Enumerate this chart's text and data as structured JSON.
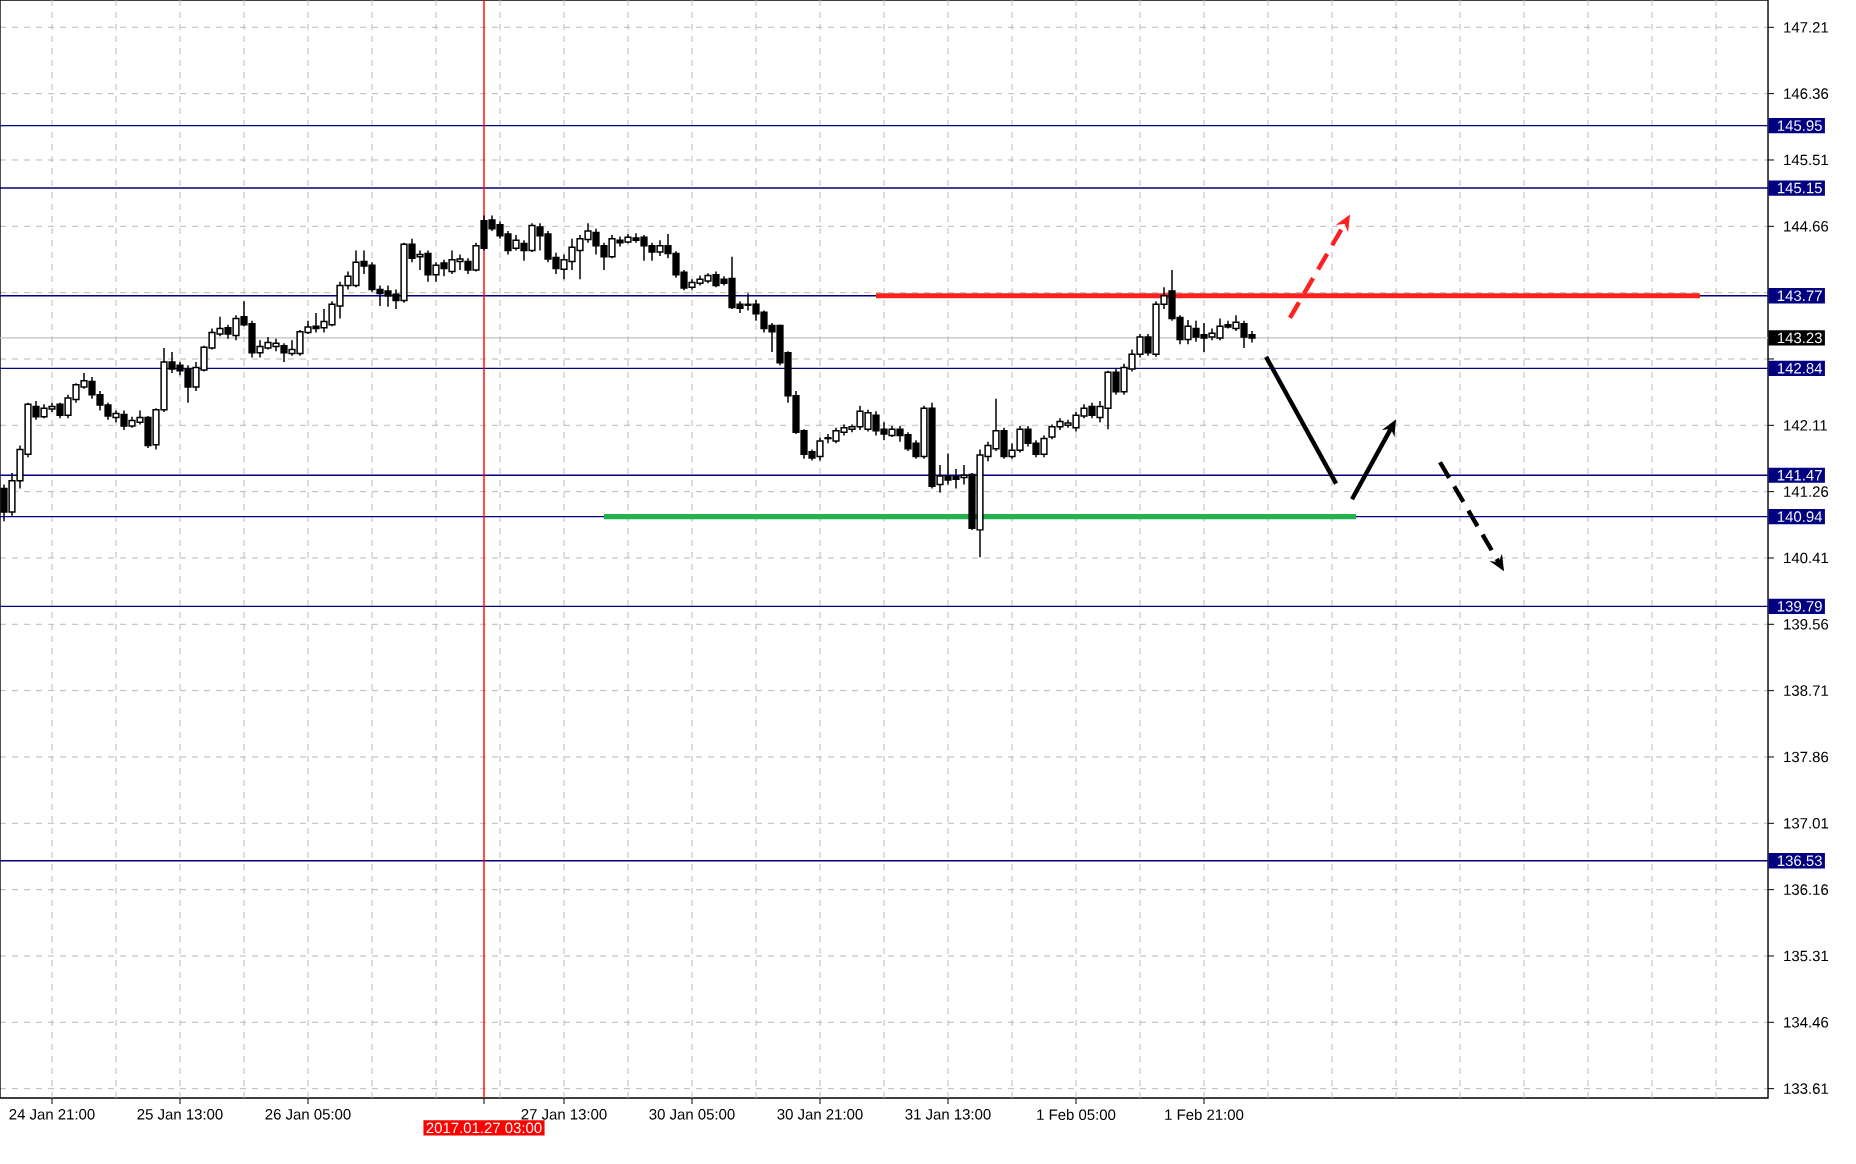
{
  "chart_data": {
    "type": "candlestick",
    "color": "#000000",
    "grid": true,
    "categories": [
      null,
      null,
      null,
      null,
      null,
      null,
      "24 Jan 21:00",
      null,
      null,
      null,
      null,
      null,
      null,
      null,
      null,
      null,
      null,
      null,
      null,
      null,
      null,
      null,
      "25 Jan 13:00",
      null,
      null,
      null,
      null,
      null,
      null,
      null,
      null,
      null,
      null,
      null,
      null,
      null,
      null,
      null,
      "26 Jan 05:00",
      null,
      null,
      null,
      null,
      null,
      null,
      null,
      null,
      null,
      null,
      null,
      null,
      null,
      null,
      null,
      null,
      null,
      null,
      null,
      null,
      null,
      "2017.01.27 03:00",
      null,
      null,
      null,
      null,
      null,
      null,
      null,
      null,
      null,
      "27 Jan 13:00",
      null,
      null,
      null,
      null,
      null,
      null,
      null,
      null,
      null,
      null,
      null,
      null,
      null,
      null,
      null,
      "30 Jan 05:00",
      null,
      null,
      null,
      null,
      null,
      null,
      null,
      null,
      null,
      null,
      null,
      null,
      null,
      null,
      null,
      "30 Jan 21:00",
      null,
      null,
      null,
      null,
      null,
      null,
      null,
      null,
      null,
      null,
      null,
      null,
      null,
      null,
      null,
      "31 Jan 13:00",
      null,
      null,
      null,
      null,
      null,
      null,
      null,
      null,
      null,
      null,
      null,
      null,
      null,
      null,
      null,
      "1 Feb 05:00",
      null,
      null,
      null,
      null,
      null,
      null,
      null,
      null,
      null,
      null,
      null,
      null,
      null,
      null,
      null,
      "1 Feb 21:00",
      null,
      null,
      null,
      null,
      null,
      null,
      null,
      null,
      null,
      null,
      null,
      null,
      null,
      null,
      null,
      null,
      null,
      null,
      null,
      null,
      null,
      null,
      null,
      null,
      null,
      null,
      null,
      null,
      null,
      null,
      null,
      null,
      null,
      null,
      null,
      null,
      null,
      null,
      null,
      null,
      null,
      null,
      null,
      null,
      null,
      null,
      null,
      null,
      null,
      null,
      null,
      null,
      null,
      null,
      null,
      null,
      null,
      null,
      null,
      null,
      null,
      null,
      null,
      null,
      null,
      null,
      null,
      null,
      null,
      null
    ],
    "ohlc": [
      [
        141.3,
        141.35,
        140.88,
        141.0
      ],
      [
        141.0,
        141.5,
        140.95,
        141.4
      ],
      [
        141.4,
        141.85,
        141.3,
        141.8
      ],
      [
        141.74,
        142.4,
        141.7,
        142.38
      ],
      [
        142.35,
        142.42,
        142.18,
        142.22
      ],
      [
        142.22,
        142.38,
        142.2,
        142.33
      ],
      [
        142.32,
        142.4,
        142.28,
        142.35
      ],
      [
        142.38,
        142.4,
        142.2,
        142.24
      ],
      [
        142.24,
        142.5,
        142.2,
        142.46
      ],
      [
        142.44,
        142.65,
        142.4,
        142.63
      ],
      [
        142.6,
        142.78,
        142.58,
        142.68
      ],
      [
        142.67,
        142.73,
        142.45,
        142.5
      ],
      [
        142.5,
        142.55,
        142.3,
        142.37
      ],
      [
        142.37,
        142.4,
        142.18,
        142.23
      ],
      [
        142.21,
        142.3,
        142.15,
        142.26
      ],
      [
        142.25,
        142.3,
        142.05,
        142.1
      ],
      [
        142.1,
        142.22,
        142.08,
        142.17
      ],
      [
        142.15,
        142.3,
        142.12,
        142.21
      ],
      [
        142.21,
        142.23,
        141.82,
        141.85
      ],
      [
        141.86,
        142.33,
        141.8,
        142.31
      ],
      [
        142.31,
        143.1,
        142.28,
        142.92
      ],
      [
        142.92,
        143.05,
        142.78,
        142.83
      ],
      [
        142.88,
        142.92,
        142.75,
        142.81
      ],
      [
        142.83,
        142.88,
        142.4,
        142.6
      ],
      [
        142.6,
        142.92,
        142.55,
        142.85
      ],
      [
        142.82,
        143.13,
        142.8,
        143.11
      ],
      [
        143.1,
        143.35,
        143.08,
        143.3
      ],
      [
        143.28,
        143.5,
        143.25,
        143.35
      ],
      [
        143.36,
        143.4,
        143.22,
        143.28
      ],
      [
        143.26,
        143.52,
        143.2,
        143.48
      ],
      [
        143.5,
        143.7,
        143.38,
        143.4
      ],
      [
        143.41,
        143.45,
        142.98,
        143.04
      ],
      [
        143.04,
        143.2,
        142.98,
        143.12
      ],
      [
        143.1,
        143.24,
        143.08,
        143.17
      ],
      [
        143.12,
        143.22,
        143.06,
        143.16
      ],
      [
        143.13,
        143.16,
        142.92,
        143.04
      ],
      [
        143.03,
        143.2,
        143.0,
        143.08
      ],
      [
        143.03,
        143.33,
        143.0,
        143.31
      ],
      [
        143.3,
        143.45,
        143.28,
        143.37
      ],
      [
        143.38,
        143.55,
        143.3,
        143.35
      ],
      [
        143.36,
        143.6,
        143.3,
        143.44
      ],
      [
        143.4,
        143.7,
        143.38,
        143.66
      ],
      [
        143.64,
        143.95,
        143.48,
        143.9
      ],
      [
        143.9,
        144.08,
        143.85,
        144.02
      ],
      [
        143.9,
        144.35,
        143.88,
        144.2
      ],
      [
        144.21,
        144.35,
        144.05,
        144.15
      ],
      [
        144.16,
        144.2,
        143.82,
        143.85
      ],
      [
        143.85,
        143.9,
        143.64,
        143.8
      ],
      [
        143.83,
        143.9,
        143.63,
        143.77
      ],
      [
        143.79,
        143.85,
        143.6,
        143.71
      ],
      [
        143.71,
        144.45,
        143.68,
        144.43
      ],
      [
        144.43,
        144.5,
        144.2,
        144.25
      ],
      [
        144.27,
        144.35,
        144.1,
        144.3
      ],
      [
        144.31,
        144.35,
        143.95,
        144.04
      ],
      [
        144.04,
        144.2,
        143.95,
        144.16
      ],
      [
        144.19,
        144.23,
        144.02,
        144.12
      ],
      [
        144.08,
        144.35,
        144.05,
        144.23
      ],
      [
        144.21,
        144.3,
        144.1,
        144.24
      ],
      [
        144.21,
        144.25,
        144.05,
        144.1
      ],
      [
        144.1,
        144.45,
        144.08,
        144.41
      ],
      [
        144.73,
        144.8,
        144.35,
        144.38
      ],
      [
        144.74,
        144.8,
        144.6,
        144.63
      ],
      [
        144.68,
        144.72,
        144.5,
        144.54
      ],
      [
        144.56,
        144.6,
        144.3,
        144.35
      ],
      [
        144.38,
        144.55,
        144.35,
        144.48
      ],
      [
        144.44,
        144.48,
        144.22,
        144.35
      ],
      [
        144.35,
        144.7,
        144.33,
        144.67
      ],
      [
        144.65,
        144.7,
        144.35,
        144.54
      ],
      [
        144.56,
        144.6,
        144.2,
        144.24
      ],
      [
        144.26,
        144.32,
        144.05,
        144.12
      ],
      [
        144.11,
        144.3,
        143.98,
        144.23
      ],
      [
        144.21,
        144.5,
        144.1,
        144.39
      ],
      [
        144.35,
        144.55,
        143.98,
        144.5
      ],
      [
        144.49,
        144.7,
        144.45,
        144.6
      ],
      [
        144.58,
        144.63,
        144.3,
        144.41
      ],
      [
        144.41,
        144.45,
        144.1,
        144.27
      ],
      [
        144.27,
        144.55,
        144.25,
        144.5
      ],
      [
        144.48,
        144.53,
        144.4,
        144.45
      ],
      [
        144.46,
        144.56,
        144.44,
        144.52
      ],
      [
        144.51,
        144.57,
        144.45,
        144.48
      ],
      [
        144.52,
        144.55,
        144.22,
        144.41
      ],
      [
        144.41,
        144.45,
        144.22,
        144.33
      ],
      [
        144.33,
        144.48,
        144.28,
        144.41
      ],
      [
        144.41,
        144.56,
        144.25,
        144.31
      ],
      [
        144.31,
        144.34,
        144.0,
        144.04
      ],
      [
        144.07,
        144.1,
        143.84,
        143.87
      ],
      [
        143.88,
        143.98,
        143.85,
        143.94
      ],
      [
        143.93,
        144.03,
        143.9,
        143.98
      ],
      [
        143.96,
        144.06,
        143.93,
        144.03
      ],
      [
        144.04,
        144.08,
        143.88,
        143.9
      ],
      [
        143.98,
        144.02,
        143.9,
        143.93
      ],
      [
        143.99,
        144.27,
        143.6,
        143.62
      ],
      [
        143.66,
        143.7,
        143.55,
        143.61
      ],
      [
        143.66,
        143.8,
        143.58,
        143.65
      ],
      [
        143.66,
        143.72,
        143.45,
        143.54
      ],
      [
        143.56,
        143.58,
        143.3,
        143.35
      ],
      [
        143.39,
        143.42,
        143.05,
        143.31
      ],
      [
        143.39,
        143.4,
        142.88,
        142.91
      ],
      [
        143.04,
        143.06,
        142.4,
        142.49
      ],
      [
        142.49,
        142.55,
        142.0,
        142.02
      ],
      [
        142.04,
        142.06,
        141.68,
        141.74
      ],
      [
        141.77,
        141.8,
        141.66,
        141.69
      ],
      [
        141.71,
        141.95,
        141.66,
        141.91
      ],
      [
        141.94,
        142.0,
        141.88,
        141.95
      ],
      [
        141.91,
        142.08,
        141.88,
        142.04
      ],
      [
        142.02,
        142.12,
        141.98,
        142.08
      ],
      [
        142.06,
        142.12,
        142.02,
        142.09
      ],
      [
        142.09,
        142.36,
        142.05,
        142.29
      ],
      [
        142.06,
        142.31,
        142.03,
        142.27
      ],
      [
        142.24,
        142.29,
        141.98,
        142.04
      ],
      [
        142.06,
        142.15,
        141.92,
        142.0
      ],
      [
        141.98,
        142.1,
        141.96,
        142.06
      ],
      [
        142.06,
        142.1,
        141.9,
        141.98
      ],
      [
        141.99,
        142.02,
        141.78,
        141.81
      ],
      [
        141.88,
        141.92,
        141.68,
        141.71
      ],
      [
        141.71,
        142.36,
        141.68,
        142.33
      ],
      [
        142.33,
        142.4,
        141.3,
        141.33
      ],
      [
        141.35,
        141.6,
        141.25,
        141.46
      ],
      [
        141.46,
        141.75,
        141.35,
        141.41
      ],
      [
        141.45,
        141.55,
        141.3,
        141.42
      ],
      [
        141.44,
        141.6,
        141.35,
        141.47
      ],
      [
        141.48,
        141.5,
        140.77,
        140.79
      ],
      [
        140.77,
        141.8,
        140.42,
        141.73
      ],
      [
        141.71,
        141.9,
        141.65,
        141.85
      ],
      [
        141.81,
        142.45,
        141.78,
        142.04
      ],
      [
        142.04,
        142.08,
        141.68,
        141.71
      ],
      [
        141.71,
        141.88,
        141.68,
        141.79
      ],
      [
        141.79,
        142.1,
        141.76,
        142.06
      ],
      [
        142.06,
        142.1,
        141.84,
        141.88
      ],
      [
        141.88,
        141.92,
        141.7,
        141.74
      ],
      [
        141.74,
        141.98,
        141.7,
        141.94
      ],
      [
        141.96,
        142.12,
        141.93,
        142.09
      ],
      [
        142.09,
        142.2,
        142.05,
        142.16
      ],
      [
        142.11,
        142.18,
        142.08,
        142.14
      ],
      [
        142.08,
        142.28,
        142.03,
        142.24
      ],
      [
        142.23,
        142.38,
        142.2,
        142.33
      ],
      [
        142.35,
        142.4,
        142.2,
        142.24
      ],
      [
        142.21,
        142.42,
        142.15,
        142.35
      ],
      [
        142.33,
        142.81,
        142.06,
        142.79
      ],
      [
        142.79,
        142.83,
        142.5,
        142.54
      ],
      [
        142.54,
        142.9,
        142.5,
        142.85
      ],
      [
        142.83,
        143.08,
        142.8,
        143.02
      ],
      [
        143.02,
        143.28,
        142.98,
        143.24
      ],
      [
        143.24,
        143.28,
        143.0,
        143.04
      ],
      [
        143.02,
        143.7,
        142.99,
        143.66
      ],
      [
        143.66,
        143.88,
        143.6,
        143.77
      ],
      [
        143.83,
        144.1,
        143.45,
        143.48
      ],
      [
        143.49,
        143.52,
        143.15,
        143.21
      ],
      [
        143.21,
        143.46,
        143.15,
        143.38
      ],
      [
        143.35,
        143.45,
        143.18,
        143.24
      ],
      [
        143.27,
        143.42,
        143.05,
        143.23
      ],
      [
        143.24,
        143.35,
        143.2,
        143.29
      ],
      [
        143.23,
        143.48,
        143.2,
        143.38
      ],
      [
        143.4,
        143.45,
        143.35,
        143.37
      ],
      [
        143.35,
        143.52,
        143.32,
        143.43
      ],
      [
        143.41,
        143.45,
        143.1,
        143.24
      ],
      [
        143.27,
        143.32,
        143.17,
        143.23
      ],
      null,
      null,
      null,
      null,
      null,
      null,
      null,
      null,
      null,
      null,
      null,
      null,
      null,
      null,
      null,
      null,
      null,
      null,
      null,
      null,
      null,
      null,
      null,
      null,
      null,
      null,
      null,
      null,
      null,
      null,
      null,
      null,
      null,
      null,
      null,
      null,
      null,
      null,
      null,
      null,
      null,
      null,
      null,
      null,
      null,
      null,
      null,
      null,
      null,
      null,
      null,
      null,
      null,
      null,
      null,
      null,
      null,
      null,
      null,
      null,
      null,
      null,
      null,
      null
    ],
    "ylim": [
      133.49,
      147.56
    ],
    "yticks": [
      147.21,
      146.36,
      145.51,
      144.66,
      {
        "value": 143.81,
        "label": null
      },
      {
        "value": 142.96,
        "label": null
      },
      142.11,
      141.26,
      140.41,
      139.56,
      138.71,
      137.86,
      137.01,
      136.16,
      135.31,
      134.46,
      133.61
    ],
    "ref_lines": [
      {
        "axis": "y",
        "value": 145.95,
        "label": "145.95",
        "color": "#000080"
      },
      {
        "axis": "y",
        "value": 145.15,
        "label": "145.15",
        "color": "#000080"
      },
      {
        "axis": "y",
        "value": 143.77,
        "label": "143.77",
        "color": "#000080"
      },
      {
        "axis": "y",
        "value": 143.23,
        "label": "143.23",
        "color": "#c0c0c0"
      },
      {
        "axis": "y",
        "value": 142.84,
        "label": "142.84",
        "color": "#000080"
      },
      {
        "axis": "y",
        "value": 141.47,
        "label": "141.47",
        "color": "#000080"
      },
      {
        "axis": "y",
        "value": 140.94,
        "label": "140.94",
        "color": "#000080"
      },
      {
        "axis": "y",
        "value": 139.79,
        "label": "139.79",
        "color": "#000080"
      },
      {
        "axis": "y",
        "value": 136.53,
        "label": "136.53",
        "color": "#000080"
      },
      {
        "axis": "x",
        "value": "2017.01.27 03:00",
        "color": "#ff0000"
      }
    ],
    "series": [
      {
        "type": "line",
        "color": "#ff2020",
        "values": [
          null,
          null,
          null,
          null,
          null,
          null,
          null,
          null,
          null,
          null,
          null,
          null,
          null,
          null,
          null,
          null,
          null,
          null,
          null,
          null,
          null,
          null,
          null,
          null,
          null,
          null,
          null,
          null,
          null,
          null,
          null,
          null,
          null,
          null,
          null,
          null,
          null,
          null,
          null,
          null,
          null,
          null,
          null,
          null,
          null,
          null,
          null,
          null,
          null,
          null,
          null,
          null,
          null,
          null,
          null,
          null,
          null,
          null,
          null,
          null,
          null,
          null,
          null,
          null,
          null,
          null,
          null,
          null,
          null,
          null,
          null,
          null,
          null,
          null,
          null,
          null,
          null,
          null,
          null,
          null,
          null,
          null,
          null,
          null,
          null,
          null,
          null,
          null,
          null,
          null,
          null,
          null,
          null,
          null,
          null,
          null,
          null,
          null,
          null,
          null,
          null,
          null,
          null,
          null,
          null,
          null,
          null,
          null,
          null,
          143.77,
          143.77,
          143.77,
          143.77,
          143.77,
          143.77,
          143.77,
          143.77,
          143.77,
          143.77,
          143.77,
          143.77,
          143.77,
          143.77,
          143.77,
          143.77,
          143.77,
          143.77,
          143.77,
          143.77,
          143.77,
          143.77,
          143.77,
          143.77,
          143.77,
          143.77,
          143.77,
          143.77,
          143.77,
          143.77,
          143.77,
          143.77,
          143.77,
          143.77,
          143.77,
          143.77,
          143.77,
          143.77,
          143.77,
          143.77,
          143.77,
          143.77,
          143.77,
          143.77,
          143.77,
          143.77,
          143.77,
          143.77,
          143.77,
          143.77,
          143.77,
          143.77,
          143.77,
          143.77,
          143.77,
          143.77,
          143.77,
          143.77,
          143.77,
          143.77,
          143.77,
          143.77,
          143.77,
          143.77,
          143.77,
          143.77,
          143.77,
          143.77,
          143.77,
          143.77,
          143.77,
          143.77,
          143.77,
          143.77,
          143.77,
          143.77,
          143.77,
          143.77,
          143.77,
          143.77,
          143.77,
          143.77,
          143.77,
          143.77,
          143.77,
          143.77,
          143.77,
          143.77,
          143.77,
          143.77,
          143.77,
          143.77,
          143.77,
          143.77,
          143.77,
          143.77,
          143.77,
          143.77,
          143.77,
          143.77,
          143.77,
          143.77,
          143.77,
          143.77,
          null,
          null,
          null,
          null,
          null,
          null,
          null,
          null
        ]
      },
      {
        "type": "line",
        "color": "#22b14c",
        "values": [
          null,
          null,
          null,
          null,
          null,
          null,
          null,
          null,
          null,
          null,
          null,
          null,
          null,
          null,
          null,
          null,
          null,
          null,
          null,
          null,
          null,
          null,
          null,
          null,
          null,
          null,
          null,
          null,
          null,
          null,
          null,
          null,
          null,
          null,
          null,
          null,
          null,
          null,
          null,
          null,
          null,
          null,
          null,
          null,
          null,
          null,
          null,
          null,
          null,
          null,
          null,
          null,
          null,
          null,
          null,
          null,
          null,
          null,
          null,
          null,
          null,
          null,
          null,
          null,
          null,
          null,
          null,
          null,
          null,
          null,
          null,
          null,
          null,
          null,
          null,
          140.94,
          140.94,
          140.94,
          140.94,
          140.94,
          140.94,
          140.94,
          140.94,
          140.94,
          140.94,
          140.94,
          140.94,
          140.94,
          140.94,
          140.94,
          140.94,
          140.94,
          140.94,
          140.94,
          140.94,
          140.94,
          140.94,
          140.94,
          140.94,
          140.94,
          140.94,
          140.94,
          140.94,
          140.94,
          140.94,
          140.94,
          140.94,
          140.94,
          140.94,
          140.94,
          140.94,
          140.94,
          140.94,
          140.94,
          140.94,
          140.94,
          140.94,
          140.94,
          140.94,
          140.94,
          140.94,
          140.94,
          140.94,
          140.94,
          140.94,
          140.94,
          140.94,
          140.94,
          140.94,
          140.94,
          140.94,
          140.94,
          140.94,
          140.94,
          140.94,
          140.94,
          140.94,
          140.94,
          140.94,
          140.94,
          140.94,
          140.94,
          140.94,
          140.94,
          140.94,
          140.94,
          140.94,
          140.94,
          140.94,
          140.94,
          140.94,
          140.94,
          140.94,
          140.94,
          140.94,
          140.94,
          140.94,
          140.94,
          140.94,
          140.94,
          140.94,
          140.94,
          140.94,
          140.94,
          140.94,
          140.94,
          140.94,
          140.94,
          140.94,
          140.94,
          null,
          null,
          null,
          null,
          null,
          null,
          null,
          null,
          null,
          null,
          null,
          null,
          null,
          null,
          null,
          null,
          null,
          null,
          null,
          null,
          null,
          null,
          null,
          null,
          null,
          null,
          null,
          null,
          null,
          null,
          null,
          null,
          null,
          null,
          null,
          null,
          null,
          null,
          null,
          null,
          null,
          null,
          null,
          null,
          null,
          null,
          null,
          null,
          null,
          null,
          null
        ]
      }
    ]
  }
}
